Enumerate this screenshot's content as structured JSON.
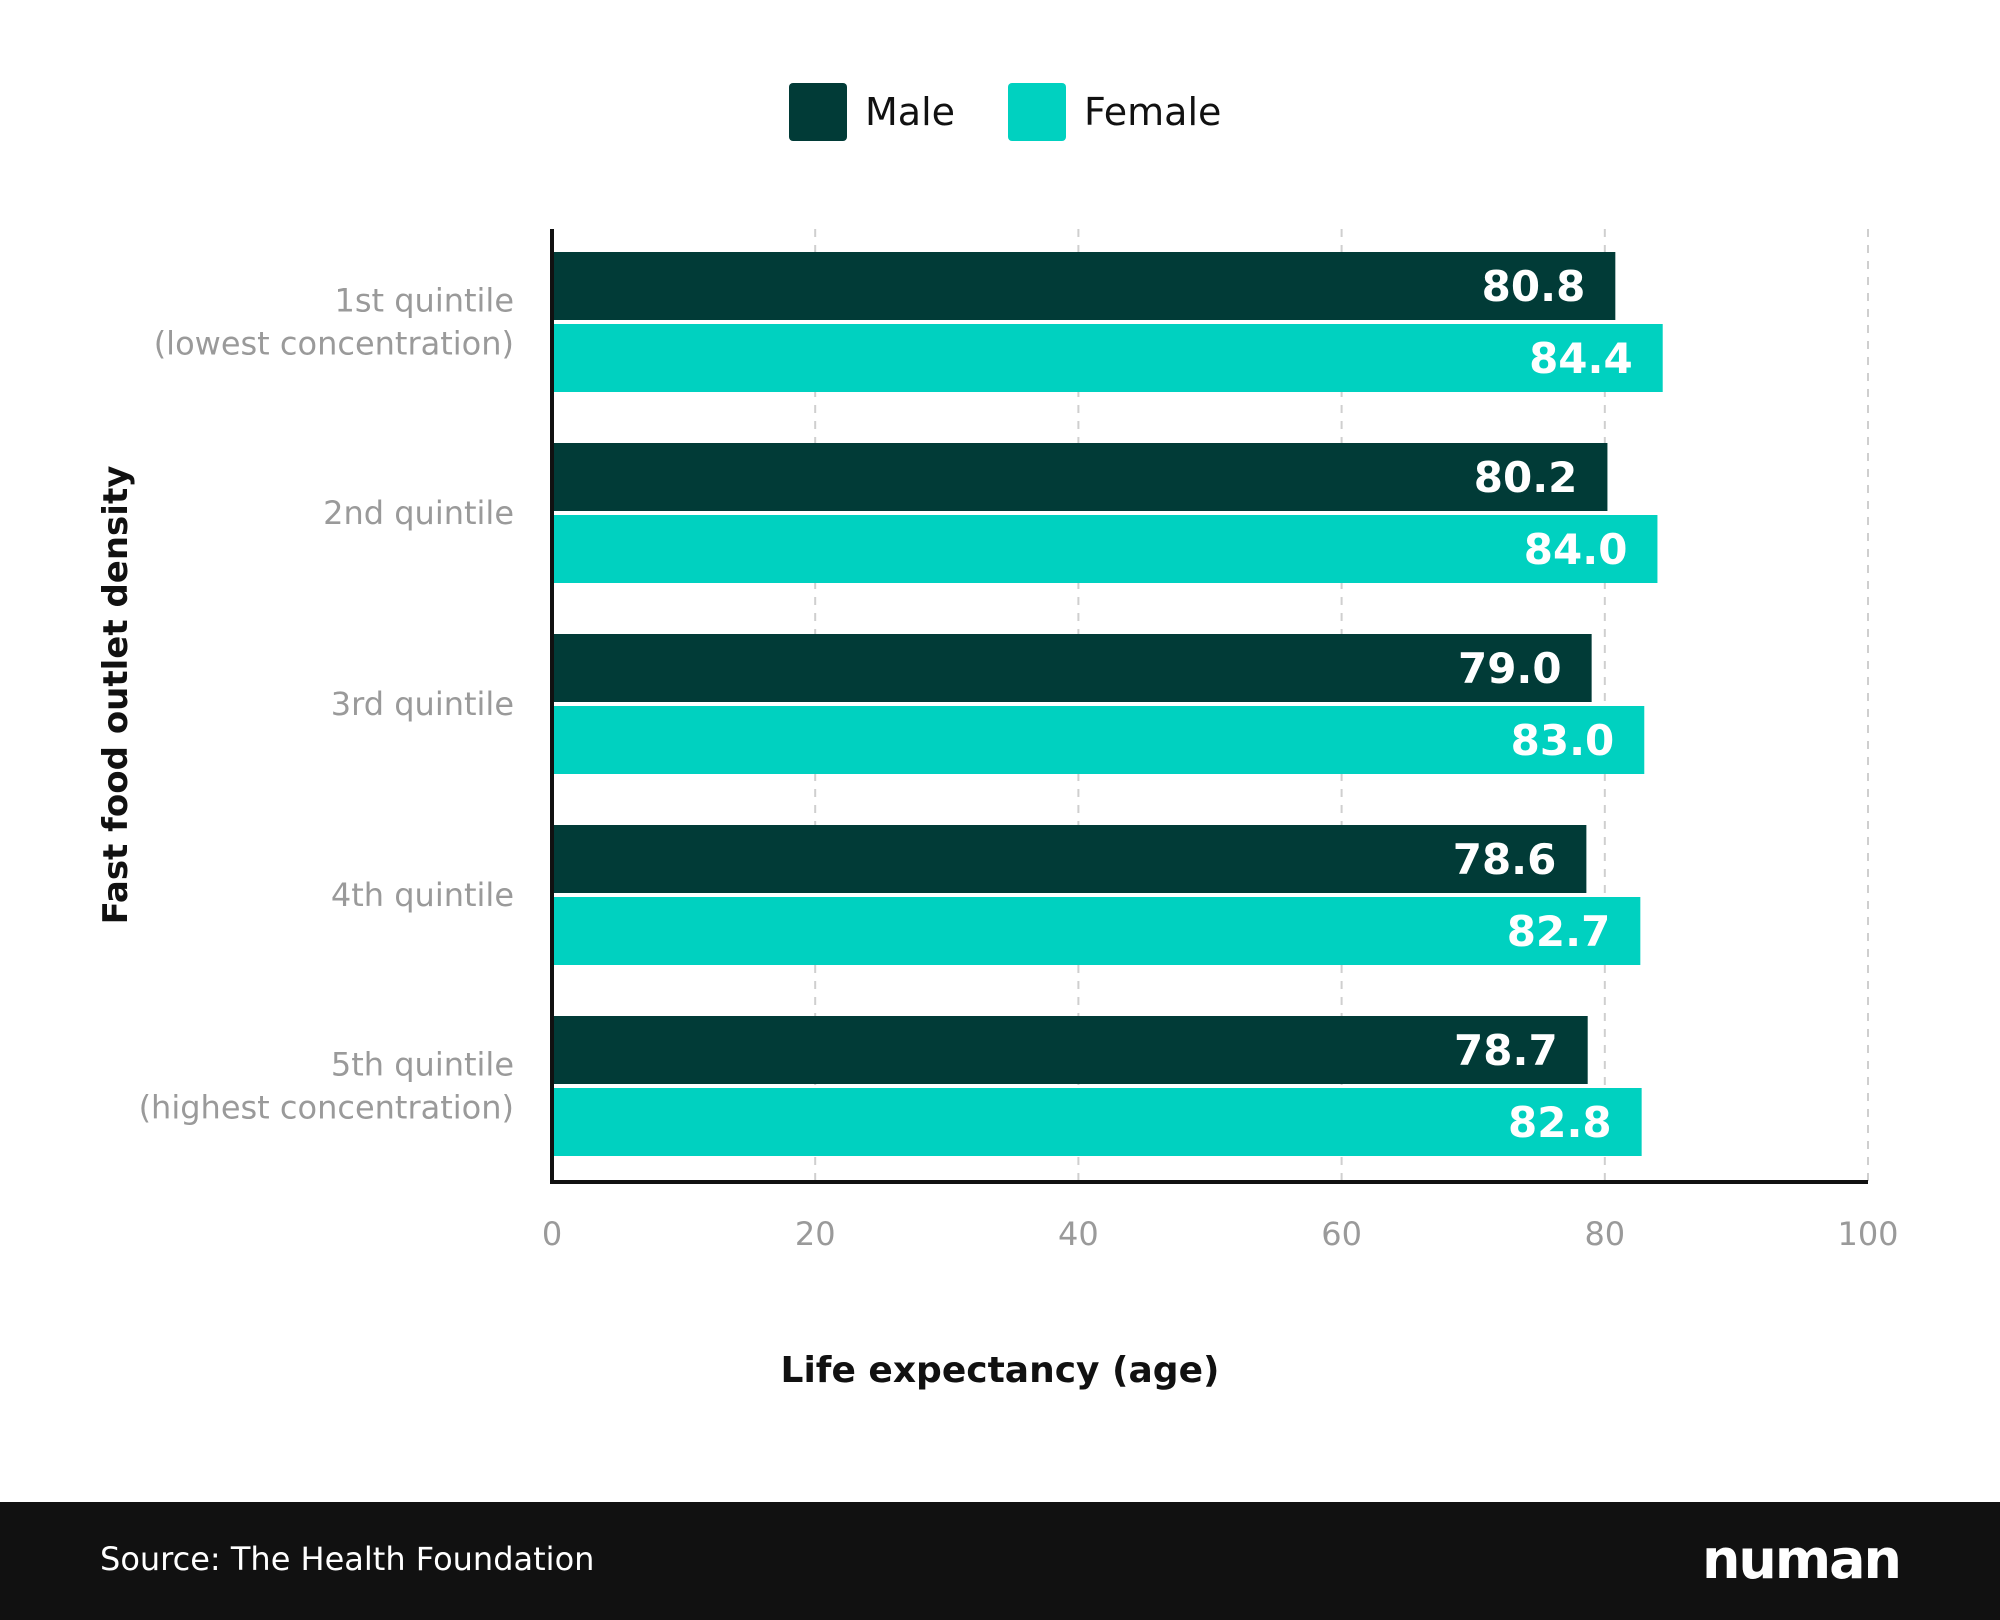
{
  "colors": {
    "male": "#013b37",
    "female": "#00d1c0",
    "axis": "#111111",
    "grid": "#cfcfcf",
    "muted_text": "#9a9a9a",
    "footer_bg": "#111111"
  },
  "legend": {
    "male_label": "Male",
    "female_label": "Female"
  },
  "footer": {
    "source": "Source: The Health Foundation",
    "logo_text": "numan"
  },
  "chart_data": {
    "type": "bar",
    "orientation": "horizontal",
    "title": "",
    "xlabel": "Life expectancy (age)",
    "ylabel": "Fast food outlet density",
    "xlim": [
      0,
      100
    ],
    "x_ticks": [
      0,
      20,
      40,
      60,
      80,
      100
    ],
    "grid": true,
    "legend_position": "top-center",
    "categories": [
      [
        "1st quintile",
        "(lowest concentration)"
      ],
      [
        "2nd quintile"
      ],
      [
        "3rd quintile"
      ],
      [
        "4th quintile"
      ],
      [
        "5th quintile",
        "(highest concentration)"
      ]
    ],
    "series": [
      {
        "name": "Male",
        "values": [
          80.8,
          80.2,
          79.0,
          78.6,
          78.7
        ],
        "labels": [
          "80.8",
          "80.2",
          "79.0",
          "78.6",
          "78.7"
        ]
      },
      {
        "name": "Female",
        "values": [
          84.4,
          84.0,
          83.0,
          82.7,
          82.8
        ],
        "labels": [
          "84.4",
          "84.0",
          "83.0",
          "82.7",
          "82.8"
        ]
      }
    ]
  }
}
